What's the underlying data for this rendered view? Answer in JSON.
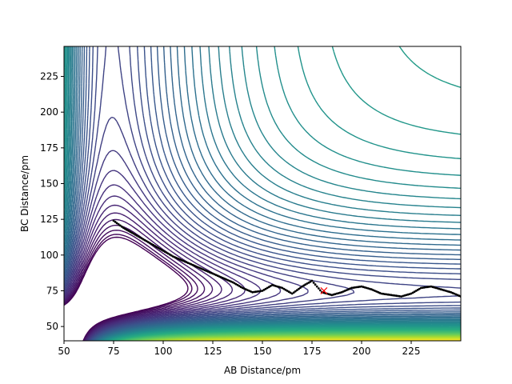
{
  "chart_data": {
    "type": "contour",
    "xlabel": "AB Distance/pm",
    "ylabel": "BC Distance/pm",
    "xlim": [
      50,
      250
    ],
    "ylim": [
      40,
      246
    ],
    "xticks": [
      50,
      75,
      100,
      125,
      150,
      175,
      200,
      225
    ],
    "yticks": [
      50,
      75,
      100,
      125,
      150,
      175,
      200,
      225
    ],
    "colormap": "viridis",
    "colormap_colors": [
      "#440154",
      "#472c7a",
      "#3b528b",
      "#2c728e",
      "#21918c",
      "#28ae80",
      "#5ec962",
      "#addc30",
      "#fde725"
    ],
    "contour_levels": 60,
    "trajectory_color": "#000000",
    "trajectory": {
      "x": [
        75,
        80,
        85,
        90,
        95,
        100,
        105,
        110,
        115,
        120,
        125,
        130,
        135,
        140,
        145,
        150,
        155,
        160,
        165,
        170,
        175,
        180,
        185,
        190,
        195,
        200,
        205,
        210,
        215,
        220,
        225,
        230,
        235,
        240,
        245,
        250
      ],
      "y": [
        124,
        119,
        115,
        111,
        107,
        103,
        99,
        96,
        93,
        90,
        87,
        84,
        81,
        77,
        74,
        75,
        79,
        77,
        73,
        78,
        82,
        74,
        72,
        74,
        77,
        78,
        76,
        73,
        72,
        71,
        73,
        77,
        78,
        76,
        74,
        71
      ]
    },
    "marker": {
      "x": 181,
      "y": 75,
      "symbol": "x",
      "color": "#ff0000"
    }
  }
}
